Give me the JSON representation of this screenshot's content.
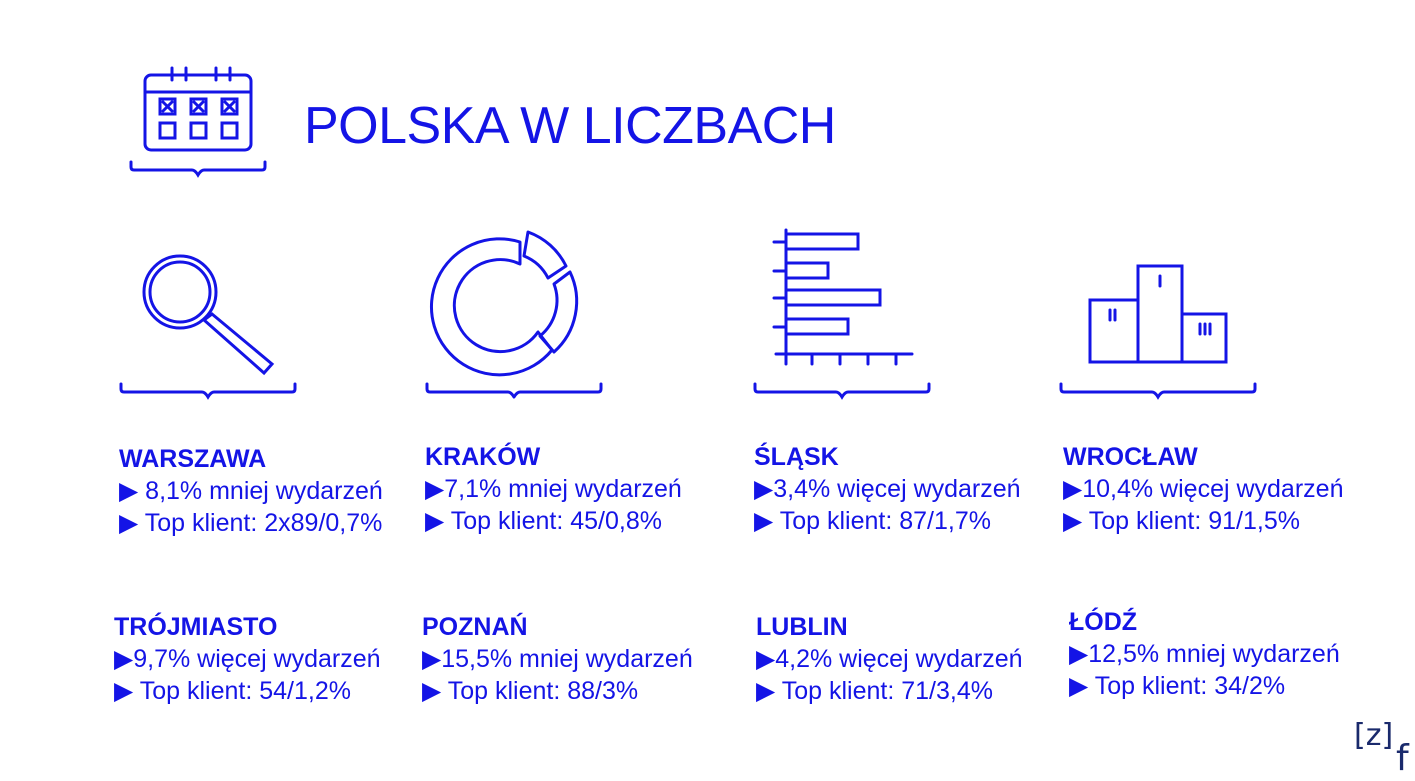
{
  "page": {
    "title": "POLSKA W LICZBACH",
    "accent": "#1414e6",
    "header_icon": "calendar-icon"
  },
  "icons": [
    "magnifier-icon",
    "donut-chart-icon",
    "bar-chart-icon",
    "podium-icon"
  ],
  "cities": [
    {
      "name": "WARSZAWA",
      "line1": "▶ 8,1% mniej wydarzeń",
      "line2": "▶ Top klient: 2x89/0,7%"
    },
    {
      "name": "KRAKÓW",
      "line1": "▶7,1% mniej wydarzeń",
      "line2": "▶ Top klient: 45/0,8%"
    },
    {
      "name": "ŚLĄSK",
      "line1": "▶3,4% więcej wydarzeń",
      "line2": "▶ Top klient: 87/1,7%"
    },
    {
      "name": "WROCŁAW",
      "line1": "▶10,4% więcej wydarzeń",
      "line2": "▶ Top klient: 91/1,5%"
    },
    {
      "name": "TRÓJMIASTO",
      "line1": "▶9,7% więcej wydarzeń",
      "line2": "▶ Top klient: 54/1,2%"
    },
    {
      "name": "POZNAŃ",
      "line1": "▶15,5% mniej wydarzeń",
      "line2": "▶ Top klient: 88/3%"
    },
    {
      "name": "LUBLIN",
      "line1": "▶4,2% więcej wydarzeń",
      "line2": "▶ Top klient: 71/3,4%"
    },
    {
      "name": "ŁÓDŹ",
      "line1": "▶12,5% mniej wydarzeń",
      "line2": "▶ Top klient: 34/2%"
    }
  ],
  "logo": {
    "bracket_text": "[z]",
    "letter": "f"
  }
}
